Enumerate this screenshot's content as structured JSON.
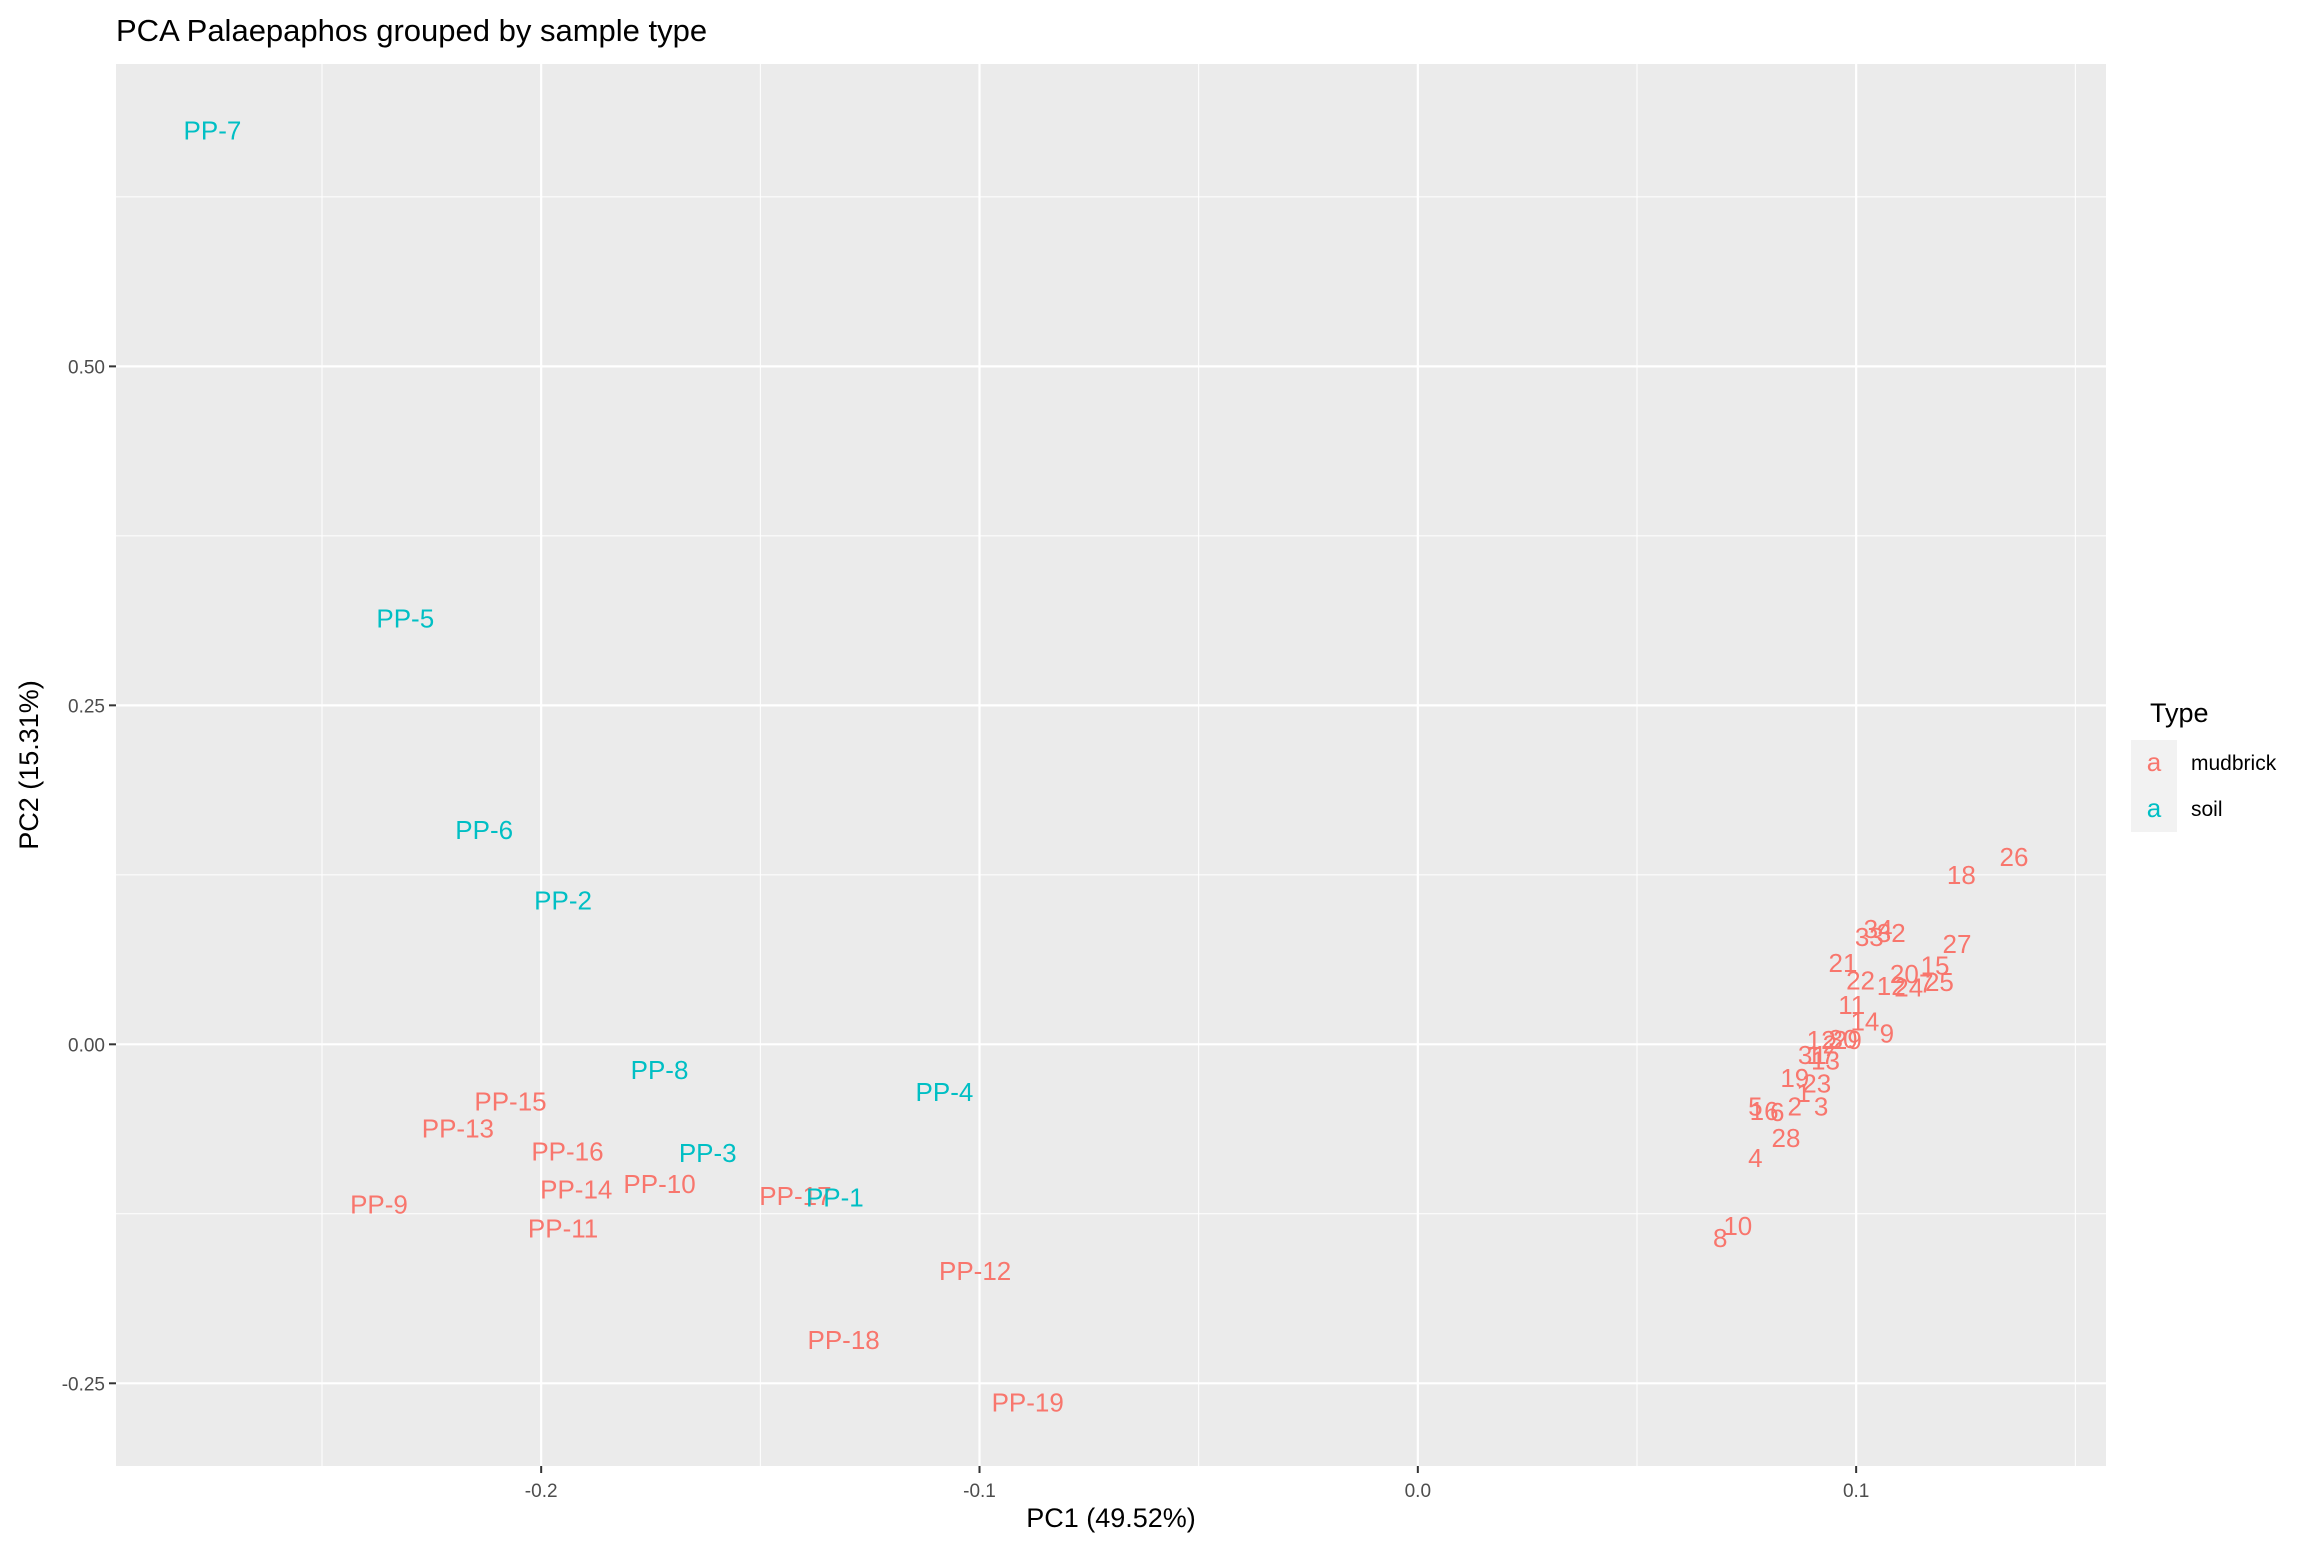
{
  "chart_data": {
    "type": "scatter",
    "title": "PCA Palaepaphos grouped by sample type",
    "xlabel": "PC1 (49.52%)",
    "ylabel": "PC2 (15.31%)",
    "xlim": [
      -0.297,
      0.157
    ],
    "ylim": [
      -0.311,
      0.723
    ],
    "x_ticks": [
      -0.2,
      -0.1,
      0.0,
      0.1
    ],
    "x_tick_labels": [
      "-0.2",
      "-0.1",
      "0.0",
      "0.1"
    ],
    "y_ticks": [
      -0.25,
      0.0,
      0.25,
      0.5
    ],
    "y_tick_labels": [
      "-0.25",
      "0.00",
      "0.25",
      "0.50"
    ],
    "grid": true,
    "legend": {
      "title": "Type",
      "position": "right",
      "key_glyph": "a",
      "entries": [
        {
          "name": "mudbrick",
          "color": "#F8766D"
        },
        {
          "name": "soil",
          "color": "#00BFC4"
        }
      ]
    },
    "series": [
      {
        "name": "mudbrick",
        "color": "#F8766D",
        "points": [
          {
            "x": -0.207,
            "y": -0.042,
            "label": "PP-15"
          },
          {
            "x": -0.219,
            "y": -0.062,
            "label": "PP-13"
          },
          {
            "x": -0.237,
            "y": -0.118,
            "label": "PP-9"
          },
          {
            "x": -0.194,
            "y": -0.079,
            "label": "PP-16"
          },
          {
            "x": -0.192,
            "y": -0.107,
            "label": "PP-14"
          },
          {
            "x": -0.173,
            "y": -0.103,
            "label": "PP-10"
          },
          {
            "x": -0.195,
            "y": -0.136,
            "label": "PP-11"
          },
          {
            "x": -0.142,
            "y": -0.112,
            "label": "PP-17"
          },
          {
            "x": -0.101,
            "y": -0.167,
            "label": "PP-12"
          },
          {
            "x": -0.131,
            "y": -0.218,
            "label": "PP-18"
          },
          {
            "x": -0.089,
            "y": -0.264,
            "label": "PP-19"
          },
          {
            "x": 0.136,
            "y": 0.138,
            "label": "26"
          },
          {
            "x": 0.124,
            "y": 0.125,
            "label": "18"
          },
          {
            "x": 0.123,
            "y": 0.074,
            "label": "27"
          },
          {
            "x": 0.105,
            "y": 0.085,
            "label": "34"
          },
          {
            "x": 0.108,
            "y": 0.082,
            "label": "32"
          },
          {
            "x": 0.103,
            "y": 0.079,
            "label": "33"
          },
          {
            "x": 0.097,
            "y": 0.06,
            "label": "21"
          },
          {
            "x": 0.118,
            "y": 0.058,
            "label": "15"
          },
          {
            "x": 0.111,
            "y": 0.052,
            "label": "20"
          },
          {
            "x": 0.101,
            "y": 0.047,
            "label": "22"
          },
          {
            "x": 0.116,
            "y": 0.045,
            "label": "7"
          },
          {
            "x": 0.119,
            "y": 0.046,
            "label": "25"
          },
          {
            "x": 0.108,
            "y": 0.043,
            "label": "12"
          },
          {
            "x": 0.112,
            "y": 0.042,
            "label": "24"
          },
          {
            "x": 0.099,
            "y": 0.029,
            "label": "11"
          },
          {
            "x": 0.102,
            "y": 0.017,
            "label": "14"
          },
          {
            "x": 0.107,
            "y": 0.008,
            "label": "9"
          },
          {
            "x": 0.092,
            "y": 0.003,
            "label": "12"
          },
          {
            "x": 0.097,
            "y": 0.004,
            "label": "30"
          },
          {
            "x": 0.098,
            "y": 0.003,
            "label": "29"
          },
          {
            "x": 0.094,
            "y": 0.0,
            "label": "2"
          },
          {
            "x": 0.09,
            "y": -0.008,
            "label": "31"
          },
          {
            "x": 0.092,
            "y": -0.008,
            "label": "17"
          },
          {
            "x": 0.093,
            "y": -0.012,
            "label": "13"
          },
          {
            "x": 0.086,
            "y": -0.025,
            "label": "19"
          },
          {
            "x": 0.091,
            "y": -0.029,
            "label": "23"
          },
          {
            "x": 0.088,
            "y": -0.036,
            "label": "1"
          },
          {
            "x": 0.077,
            "y": -0.046,
            "label": "5"
          },
          {
            "x": 0.079,
            "y": -0.049,
            "label": "16"
          },
          {
            "x": 0.082,
            "y": -0.05,
            "label": "6"
          },
          {
            "x": 0.086,
            "y": -0.046,
            "label": "2"
          },
          {
            "x": 0.092,
            "y": -0.046,
            "label": "3"
          },
          {
            "x": 0.084,
            "y": -0.069,
            "label": "28"
          },
          {
            "x": 0.077,
            "y": -0.084,
            "label": "4"
          },
          {
            "x": 0.073,
            "y": -0.134,
            "label": "10"
          },
          {
            "x": 0.069,
            "y": -0.143,
            "label": "8"
          }
        ]
      },
      {
        "name": "soil",
        "color": "#00BFC4",
        "points": [
          {
            "x": -0.275,
            "y": 0.674,
            "label": "PP-7"
          },
          {
            "x": -0.231,
            "y": 0.314,
            "label": "PP-5"
          },
          {
            "x": -0.213,
            "y": 0.158,
            "label": "PP-6"
          },
          {
            "x": -0.195,
            "y": 0.106,
            "label": "PP-2"
          },
          {
            "x": -0.173,
            "y": -0.019,
            "label": "PP-8"
          },
          {
            "x": -0.162,
            "y": -0.08,
            "label": "PP-3"
          },
          {
            "x": -0.108,
            "y": -0.035,
            "label": "PP-4"
          },
          {
            "x": -0.133,
            "y": -0.113,
            "label": "PP-1"
          }
        ]
      }
    ]
  }
}
